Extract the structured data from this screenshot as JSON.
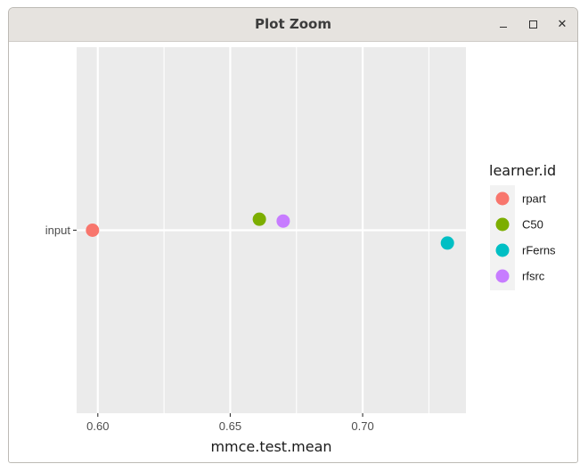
{
  "window": {
    "title": "Plot Zoom",
    "minimize_icon": "minimize-icon",
    "maximize_icon": "maximize-icon",
    "close_icon": "close-icon",
    "close_glyph": "✕"
  },
  "chart_data": {
    "type": "scatter",
    "title": "",
    "xlabel": "mmce.test.mean",
    "ylabel": "",
    "xlim": [
      0.592,
      0.739
    ],
    "x_ticks": [
      0.6,
      0.65,
      0.7
    ],
    "x_tick_labels": [
      "0.60",
      "0.65",
      "0.70"
    ],
    "y_categories": [
      "input"
    ],
    "grid": true,
    "panel_background": "#ebebeb",
    "legend": {
      "title": "learner.id",
      "position": "right",
      "entries": [
        "rpart",
        "C50",
        "rFerns",
        "rfsrc"
      ]
    },
    "series": [
      {
        "name": "rpart",
        "color": "#f8766d",
        "x": 0.598,
        "y": "input",
        "jitter": 0.0
      },
      {
        "name": "C50",
        "color": "#7cae00",
        "x": 0.661,
        "y": "input",
        "jitter": 0.06
      },
      {
        "name": "rFerns",
        "color": "#00bfc4",
        "x": 0.732,
        "y": "input",
        "jitter": -0.07
      },
      {
        "name": "rfsrc",
        "color": "#c77cff",
        "x": 0.67,
        "y": "input",
        "jitter": 0.05
      }
    ]
  }
}
